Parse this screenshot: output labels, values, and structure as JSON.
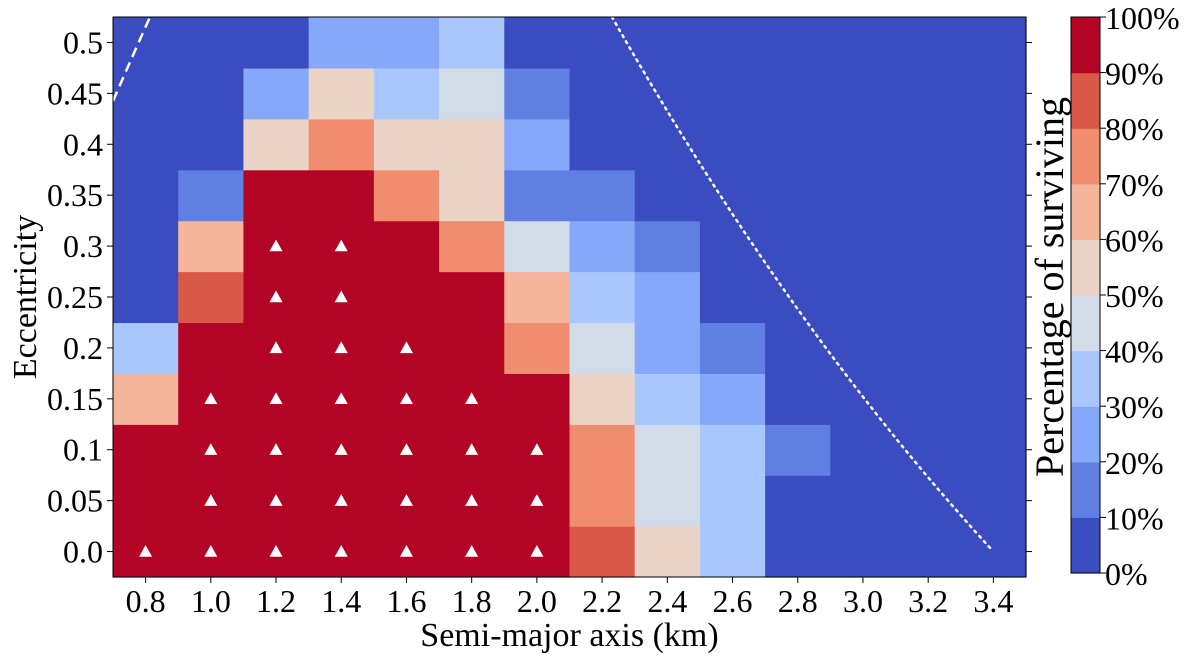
{
  "chart_data": {
    "type": "heatmap",
    "xlabel": "Semi-major axis (km)",
    "ylabel": "Eccentricity",
    "x_tick_labels": [
      "0.8",
      "1.0",
      "1.2",
      "1.4",
      "1.6",
      "1.8",
      "2.0",
      "2.2",
      "2.4",
      "2.6",
      "2.8",
      "3.0",
      "3.2",
      "3.4"
    ],
    "y_tick_labels": [
      "0.0",
      "0.05",
      "0.1",
      "0.15",
      "0.2",
      "0.25",
      "0.3",
      "0.35",
      "0.4",
      "0.45",
      "0.5"
    ],
    "colorbar_label": "Percentage of surviving",
    "colorbar_ticks": [
      "0%",
      "10%",
      "20%",
      "30%",
      "40%",
      "50%",
      "60%",
      "70%",
      "80%",
      "90%",
      "100%"
    ],
    "colorbar_colors": [
      "#3b4cc0",
      "#5f7fe3",
      "#86a8fb",
      "#aac7fd",
      "#d2dbe8",
      "#ebd3c6",
      "#f5b59b",
      "#f08d6f",
      "#d95847",
      "#b40426"
    ],
    "values_percent": [
      [
        100,
        100,
        100,
        100,
        100,
        100,
        100,
        85,
        55,
        35,
        0,
        0,
        0,
        0
      ],
      [
        100,
        100,
        100,
        100,
        100,
        100,
        100,
        75,
        45,
        35,
        0,
        0,
        0,
        0
      ],
      [
        100,
        100,
        100,
        100,
        100,
        100,
        100,
        75,
        45,
        35,
        15,
        0,
        0,
        0
      ],
      [
        65,
        100,
        100,
        100,
        100,
        100,
        100,
        55,
        35,
        25,
        0,
        0,
        0,
        0
      ],
      [
        35,
        100,
        100,
        100,
        100,
        100,
        75,
        45,
        25,
        15,
        0,
        0,
        0,
        0
      ],
      [
        0,
        85,
        100,
        100,
        100,
        100,
        65,
        35,
        25,
        0,
        0,
        0,
        0,
        0
      ],
      [
        0,
        65,
        100,
        100,
        100,
        75,
        45,
        25,
        15,
        0,
        0,
        0,
        0,
        0
      ],
      [
        0,
        15,
        100,
        100,
        75,
        55,
        15,
        15,
        0,
        0,
        0,
        0,
        0,
        0
      ],
      [
        0,
        0,
        55,
        75,
        55,
        55,
        25,
        0,
        0,
        0,
        0,
        0,
        0,
        0
      ],
      [
        0,
        0,
        25,
        55,
        35,
        45,
        15,
        0,
        0,
        0,
        0,
        0,
        0,
        0
      ],
      [
        0,
        0,
        0,
        25,
        25,
        35,
        0,
        0,
        0,
        0,
        0,
        0,
        0,
        0
      ]
    ],
    "triangle_markers": [
      {
        "x": "0.8",
        "y": "0.0"
      },
      {
        "x": "1.0",
        "y": "0.0"
      },
      {
        "x": "1.2",
        "y": "0.0"
      },
      {
        "x": "1.4",
        "y": "0.0"
      },
      {
        "x": "1.6",
        "y": "0.0"
      },
      {
        "x": "1.8",
        "y": "0.0"
      },
      {
        "x": "2.0",
        "y": "0.0"
      },
      {
        "x": "1.0",
        "y": "0.05"
      },
      {
        "x": "1.2",
        "y": "0.05"
      },
      {
        "x": "1.4",
        "y": "0.05"
      },
      {
        "x": "1.6",
        "y": "0.05"
      },
      {
        "x": "1.8",
        "y": "0.05"
      },
      {
        "x": "2.0",
        "y": "0.05"
      },
      {
        "x": "1.0",
        "y": "0.1"
      },
      {
        "x": "1.2",
        "y": "0.1"
      },
      {
        "x": "1.4",
        "y": "0.1"
      },
      {
        "x": "1.6",
        "y": "0.1"
      },
      {
        "x": "1.8",
        "y": "0.1"
      },
      {
        "x": "2.0",
        "y": "0.1"
      },
      {
        "x": "1.0",
        "y": "0.15"
      },
      {
        "x": "1.2",
        "y": "0.15"
      },
      {
        "x": "1.4",
        "y": "0.15"
      },
      {
        "x": "1.6",
        "y": "0.15"
      },
      {
        "x": "1.8",
        "y": "0.15"
      },
      {
        "x": "1.2",
        "y": "0.2"
      },
      {
        "x": "1.4",
        "y": "0.2"
      },
      {
        "x": "1.6",
        "y": "0.2"
      },
      {
        "x": "1.2",
        "y": "0.25"
      },
      {
        "x": "1.4",
        "y": "0.25"
      },
      {
        "x": "1.2",
        "y": "0.3"
      },
      {
        "x": "1.4",
        "y": "0.3"
      }
    ],
    "boundary_lines": [
      {
        "name": "dashed-boundary",
        "style": "dashed",
        "color": "#ffffff"
      },
      {
        "name": "dotted-boundary",
        "style": "dotted",
        "color": "#ffffff"
      }
    ]
  }
}
